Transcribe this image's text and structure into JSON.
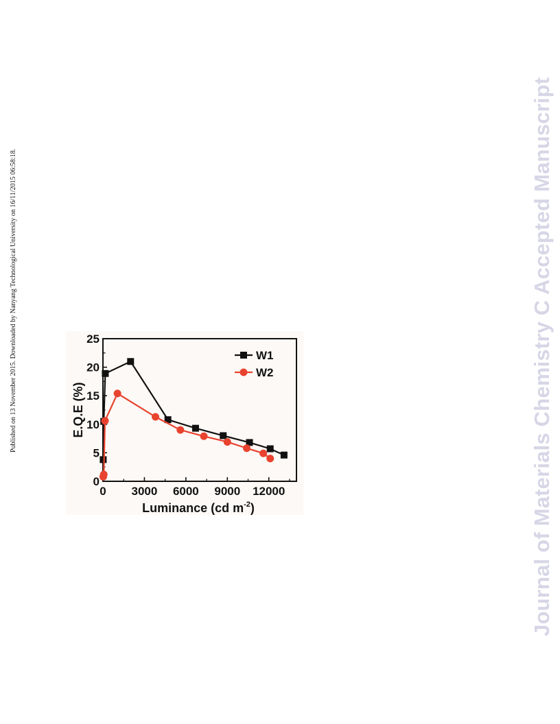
{
  "page": {
    "side_note": "Published on 13 November 2015. Downloaded by Nanyang Technological University on 16/11/2015 06:58:18.",
    "watermark": "Journal of Materials Chemistry C Accepted Manuscript"
  },
  "chart_data": {
    "type": "line",
    "title": "",
    "xlabel": "Luminance (cd m",
    "xlabel_superscript": "-2",
    "xlabel_suffix": ")",
    "ylabel": "E.Q.E (%)",
    "xlim": [
      0,
      14000
    ],
    "ylim": [
      0,
      25
    ],
    "xticks": [
      0,
      3000,
      6000,
      9000,
      12000
    ],
    "xtick_labels": [
      "0",
      "3000",
      "6000",
      "9000",
      "12000"
    ],
    "yticks": [
      0,
      5,
      10,
      15,
      20,
      25
    ],
    "ytick_labels": [
      "0",
      "5",
      "10",
      "15",
      "20",
      "25"
    ],
    "grid": false,
    "legend_position": "top-right",
    "series": [
      {
        "name": "W1",
        "color": "#111111",
        "marker": "square",
        "x": [
          20,
          60,
          170,
          2000,
          4700,
          6700,
          8700,
          10600,
          12100,
          13100
        ],
        "y": [
          3.8,
          10.5,
          18.9,
          21.0,
          10.8,
          9.3,
          8.0,
          6.8,
          5.7,
          4.6
        ]
      },
      {
        "name": "W2",
        "color": "#e8432f",
        "marker": "circle",
        "x": [
          20,
          60,
          150,
          1050,
          3800,
          5600,
          7300,
          9000,
          10400,
          11600,
          12100
        ],
        "y": [
          0.8,
          1.2,
          10.6,
          15.4,
          11.3,
          9.0,
          7.9,
          6.9,
          5.8,
          4.9,
          4.0
        ]
      }
    ]
  }
}
